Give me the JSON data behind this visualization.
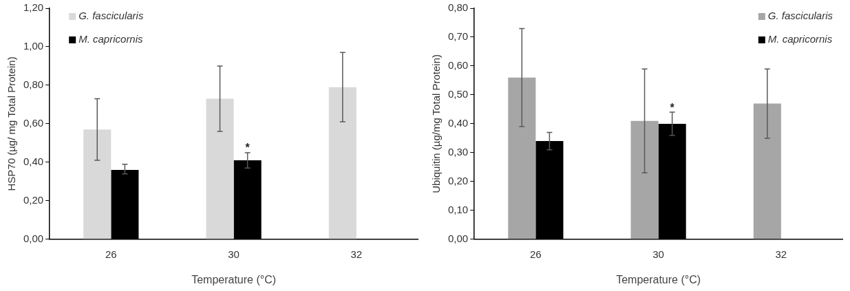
{
  "chart_data": [
    {
      "type": "bar",
      "ylabel": "HSP70 (µg/ mg Total Protein)",
      "xlabel": "Temperature (°C)",
      "categories": [
        "26",
        "30",
        "32"
      ],
      "series": [
        {
          "name": "G. fascicularis",
          "color": "#d9d9d9",
          "values": [
            0.57,
            0.73,
            0.79
          ],
          "errors": [
            [
              0.41,
              0.73
            ],
            [
              0.56,
              0.9
            ],
            [
              0.61,
              0.97
            ]
          ]
        },
        {
          "name": "M. capricornis",
          "color": "#000000",
          "values": [
            0.36,
            0.41,
            null
          ],
          "errors": [
            [
              0.34,
              0.39
            ],
            [
              0.37,
              0.45
            ],
            null
          ]
        }
      ],
      "ylim": [
        0,
        1.2
      ],
      "yticks": [
        {
          "value": 0,
          "label": "0,00"
        },
        {
          "value": 0.2,
          "label": "0,20"
        },
        {
          "value": 0.4,
          "label": "0,40"
        },
        {
          "value": 0.6,
          "label": "0,60"
        },
        {
          "value": 0.8,
          "label": "0,80"
        },
        {
          "value": 1.0,
          "label": "1,00"
        },
        {
          "value": 1.2,
          "label": "1,20"
        }
      ],
      "annotations": [
        {
          "text": "*",
          "x": "30",
          "y": 0.45
        }
      ],
      "grid": false,
      "legend": "top left"
    },
    {
      "type": "bar",
      "ylabel": "Ubiquitin (µg/mg Total Protein)",
      "xlabel": "Temperature (°C)",
      "categories": [
        "26",
        "30",
        "32"
      ],
      "series": [
        {
          "name": "G. fascicularis",
          "color": "#a6a6a6",
          "values": [
            0.56,
            0.41,
            0.47
          ],
          "errors": [
            [
              0.39,
              0.73
            ],
            [
              0.23,
              0.59
            ],
            [
              0.35,
              0.59
            ]
          ]
        },
        {
          "name": "M. capricornis",
          "color": "#000000",
          "values": [
            0.34,
            0.4,
            null
          ],
          "errors": [
            [
              0.31,
              0.37
            ],
            [
              0.36,
              0.44
            ],
            null
          ]
        }
      ],
      "ylim": [
        0,
        0.8
      ],
      "yticks": [
        {
          "value": 0,
          "label": "0,00"
        },
        {
          "value": 0.1,
          "label": "0,10"
        },
        {
          "value": 0.2,
          "label": "0,20"
        },
        {
          "value": 0.3,
          "label": "0,30"
        },
        {
          "value": 0.4,
          "label": "0,40"
        },
        {
          "value": 0.5,
          "label": "0,50"
        },
        {
          "value": 0.6,
          "label": "0,60"
        },
        {
          "value": 0.7,
          "label": "0,70"
        },
        {
          "value": 0.8,
          "label": "0,80"
        }
      ],
      "annotations": [
        {
          "text": "*",
          "x": "30",
          "y": 0.4
        }
      ],
      "grid": false,
      "legend": "top right"
    }
  ]
}
